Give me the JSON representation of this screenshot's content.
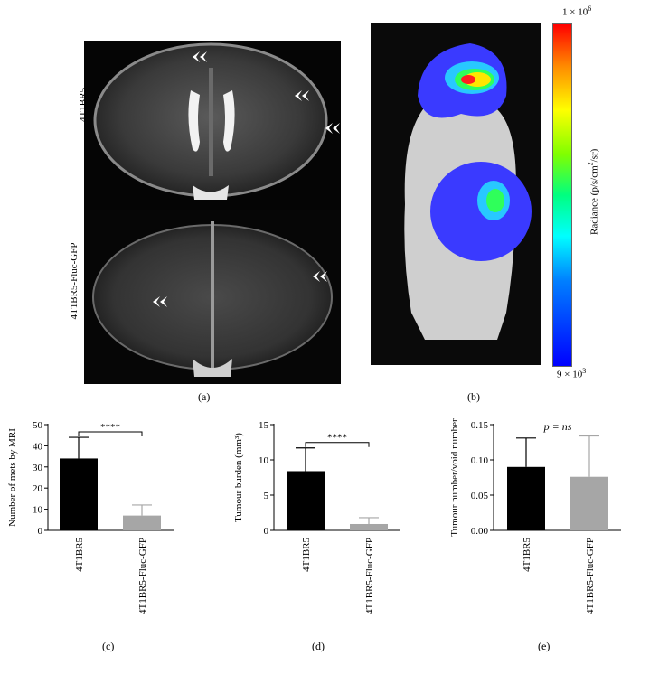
{
  "panels": {
    "a": "(a)",
    "b": "(b)",
    "c": "(c)",
    "d": "(d)",
    "e": "(e)"
  },
  "mri": {
    "top_label": "4T1BR5",
    "bottom_label": "4T1BR5-Fluc-GFP"
  },
  "bli": {
    "scale_max": "1 × 10",
    "scale_max_exp": "6",
    "scale_min": "9 × 10",
    "scale_min_exp": "3",
    "colorbar_label_pre": "Radiance (p/s/cm",
    "colorbar_label_sup": "2",
    "colorbar_label_post": "/sr)"
  },
  "colors": {
    "bar_primary": "#000000",
    "bar_secondary": "#a6a6a6"
  },
  "chart_data": [
    {
      "type": "bar",
      "panel": "(c)",
      "categories": [
        "4T1BR5",
        "4T1BR5-Fluc-GFP"
      ],
      "values": [
        34,
        7
      ],
      "errors": [
        10,
        5
      ],
      "ylabel": "Number of mets by MRI",
      "ylim": [
        0,
        50
      ],
      "yticks": [
        "0",
        "10",
        "20",
        "30",
        "40",
        "50"
      ],
      "ytick_values": [
        0,
        10,
        20,
        30,
        40,
        50
      ],
      "significance": "****"
    },
    {
      "type": "bar",
      "panel": "(d)",
      "categories": [
        "4T1BR5",
        "4T1BR5-Fluc-GFP"
      ],
      "values": [
        8.4,
        0.9
      ],
      "errors": [
        3.3,
        0.9
      ],
      "ylabel": "Tumour burden (mm³)",
      "ylim": [
        0,
        15
      ],
      "yticks": [
        "0",
        "5",
        "10",
        "15"
      ],
      "ytick_values": [
        0,
        5,
        10,
        15
      ],
      "significance": "****"
    },
    {
      "type": "bar",
      "panel": "(e)",
      "categories": [
        "4T1BR5",
        "4T1BR5-Fluc-GFP"
      ],
      "values": [
        0.09,
        0.076
      ],
      "errors": [
        0.041,
        0.058
      ],
      "ylabel": "Tumour number/void number",
      "ylim": [
        0,
        0.15
      ],
      "yticks": [
        "0.00",
        "0.05",
        "0.10",
        "0.15"
      ],
      "ytick_values": [
        0,
        0.05,
        0.1,
        0.15
      ],
      "significance": "p = ns"
    }
  ]
}
